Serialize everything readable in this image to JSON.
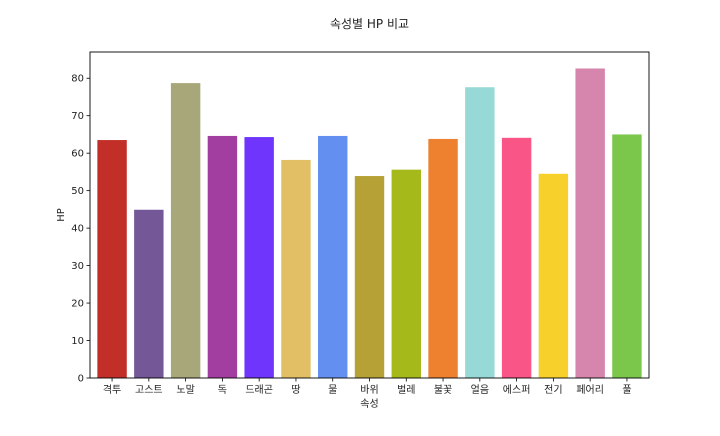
{
  "chart_data": {
    "type": "bar",
    "title": "속성별 HP 비교",
    "xlabel": "속성",
    "ylabel": "HP",
    "ylim": [
      0,
      87
    ],
    "yticks": [
      0,
      10,
      20,
      30,
      40,
      50,
      60,
      70,
      80
    ],
    "grid": false,
    "categories": [
      "격투",
      "고스트",
      "노말",
      "독",
      "드래곤",
      "땅",
      "물",
      "바위",
      "벌레",
      "불꽃",
      "얼음",
      "에스퍼",
      "전기",
      "페어리",
      "풀"
    ],
    "values": [
      63.5,
      44.9,
      78.7,
      64.6,
      64.3,
      58.2,
      64.6,
      53.9,
      55.6,
      63.8,
      77.6,
      64.1,
      54.5,
      82.6,
      65.0
    ],
    "colors": [
      "#c22e28",
      "#735797",
      "#a8a77a",
      "#a33ea1",
      "#6f35fc",
      "#e2bf65",
      "#6390f0",
      "#b6a136",
      "#a6b91a",
      "#ee8130",
      "#96d9d6",
      "#f95587",
      "#f7d02c",
      "#d685ad",
      "#7ac74c"
    ]
  }
}
